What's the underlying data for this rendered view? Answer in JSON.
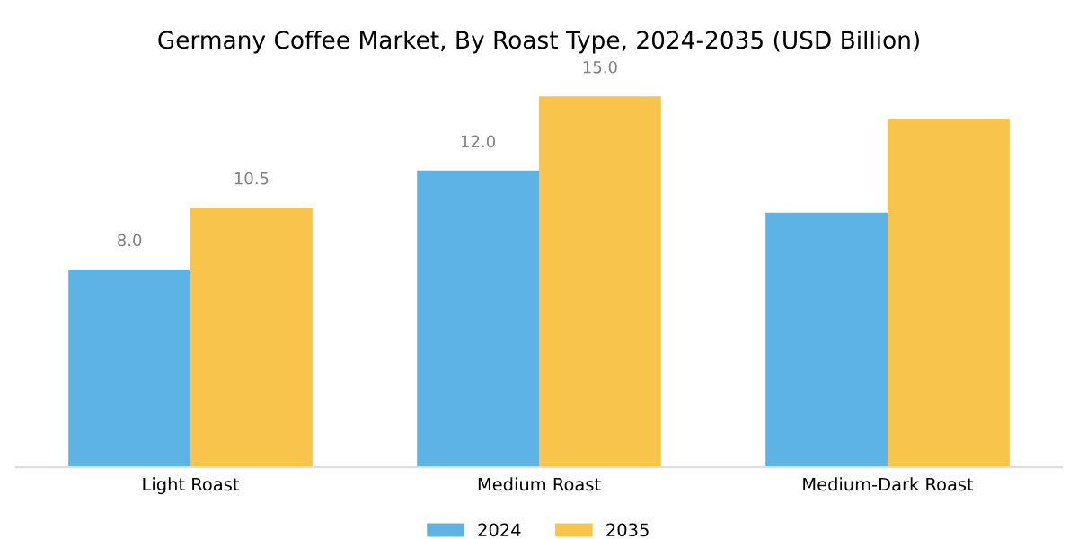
{
  "chart_data": {
    "type": "bar",
    "title": "Germany Coffee Market, By Roast Type, 2024-2035 (USD Billion)",
    "categories": [
      "Light Roast",
      "Medium Roast",
      "Medium-Dark Roast"
    ],
    "series": [
      {
        "name": "2024",
        "color": "#5db3e6",
        "values": [
          8.0,
          12.0,
          10.3
        ],
        "value_labels": [
          "8.0",
          "12.0",
          null
        ]
      },
      {
        "name": "2035",
        "color": "#f9c44b",
        "values": [
          10.5,
          15.0,
          14.1
        ],
        "value_labels": [
          "10.5",
          "15.0",
          null
        ]
      }
    ],
    "legend": "bottom",
    "grid": false
  }
}
